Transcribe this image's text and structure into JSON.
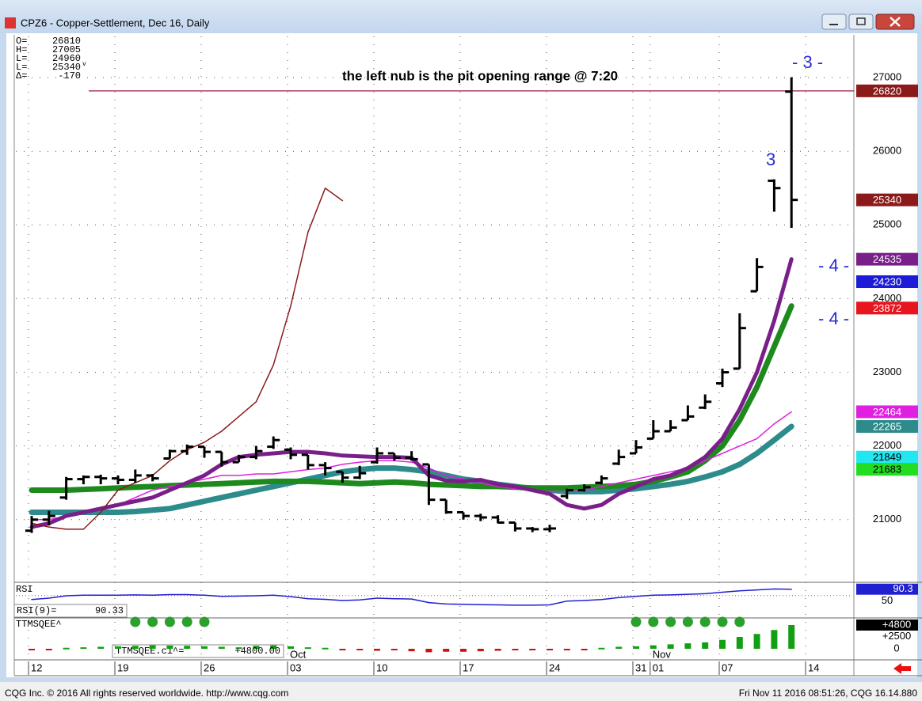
{
  "window": {
    "title": "CPZ6 - Copper-Settlement, Dec 16, Daily"
  },
  "footer": {
    "left": "CQG Inc. © 2016 All rights reserved worldwide. http://www.cqg.com",
    "right": "Fri Nov 11 2016 08:51:26, CQG 16.14.880"
  },
  "info": [
    {
      "label": "O=",
      "value": 26810
    },
    {
      "label": "H=",
      "value": 27005
    },
    {
      "label": "L=",
      "value": 24960
    },
    {
      "label": "L=",
      "value": 25340,
      "flag": "v"
    },
    {
      "label": "Δ=",
      "value": -170
    }
  ],
  "chart_data": {
    "type": "ohlc",
    "annotations": [
      "the left nub is the pit opening range @ 7:20",
      "- 3 -",
      "3",
      "- 4 -",
      "- 4 -"
    ],
    "categories": [
      "12",
      null,
      null,
      null,
      null,
      "19",
      null,
      null,
      null,
      null,
      "26",
      null,
      null,
      null,
      null,
      "03",
      null,
      null,
      null,
      null,
      "10",
      null,
      null,
      null,
      null,
      "17",
      null,
      null,
      null,
      null,
      "24",
      null,
      null,
      null,
      null,
      "31",
      "01",
      null,
      null,
      null,
      "07",
      null,
      null,
      null,
      null,
      "14",
      null,
      null
    ],
    "months": [
      null,
      null,
      null,
      null,
      null,
      null,
      null,
      null,
      null,
      null,
      null,
      null,
      null,
      null,
      null,
      "Oct",
      null,
      null,
      null,
      null,
      null,
      null,
      null,
      null,
      null,
      null,
      null,
      null,
      null,
      null,
      null,
      null,
      null,
      null,
      null,
      null,
      "Nov",
      null,
      null,
      null,
      null,
      null,
      null,
      null,
      null,
      null,
      null,
      null
    ],
    "open": [
      20850,
      21000,
      21300,
      21550,
      21580,
      21560,
      21540,
      21600,
      21830,
      21930,
      21990,
      21920,
      21780,
      21850,
      21990,
      21950,
      21880,
      21740,
      21650,
      21570,
      21780,
      21900,
      21840,
      21750,
      21270,
      21100,
      21050,
      21030,
      20960,
      20880,
      20870,
      21320,
      21400,
      21500,
      21760,
      21900,
      22100,
      22200,
      22350,
      22520,
      22850,
      23050,
      24100,
      25600,
      26810,
      null,
      null,
      null
    ],
    "high": [
      21050,
      21120,
      21580,
      21600,
      21610,
      21600,
      21680,
      21620,
      21950,
      22020,
      21990,
      21920,
      21880,
      22000,
      22130,
      21980,
      21880,
      21780,
      21650,
      21730,
      21980,
      21900,
      21930,
      21750,
      21270,
      21100,
      21080,
      21060,
      20960,
      20900,
      20930,
      21420,
      21480,
      21600,
      21950,
      22080,
      22350,
      22350,
      22550,
      22700,
      23050,
      23800,
      24550,
      25620,
      27005,
      null,
      null,
      null
    ],
    "low": [
      20820,
      20920,
      21270,
      21480,
      21480,
      21480,
      21500,
      21520,
      21830,
      21880,
      21840,
      21720,
      21780,
      21820,
      21960,
      21820,
      21680,
      21600,
      21500,
      21550,
      21760,
      21800,
      21800,
      21200,
      21080,
      21000,
      20980,
      20950,
      20840,
      20830,
      20830,
      21280,
      21380,
      21480,
      21740,
      21900,
      22100,
      22200,
      22350,
      22500,
      22800,
      23050,
      24100,
      25180,
      24960,
      null,
      null,
      null
    ],
    "close": [
      21000,
      21050,
      21550,
      21580,
      21560,
      21540,
      21600,
      21560,
      21930,
      21990,
      21920,
      21780,
      21850,
      21930,
      22080,
      21880,
      21740,
      21700,
      21570,
      21630,
      21900,
      21840,
      21820,
      21270,
      21100,
      21050,
      21030,
      20960,
      20880,
      20870,
      20880,
      21400,
      21440,
      21560,
      21850,
      21980,
      22200,
      22250,
      22400,
      22600,
      23000,
      23600,
      24430,
      25500,
      25340,
      null,
      null,
      null
    ],
    "bar_color": "#000000",
    "series": [
      {
        "color": "#2e8b8b",
        "width": 7,
        "values": [
          21100,
          21100,
          21100,
          21100,
          21100,
          21100,
          21110,
          21130,
          21150,
          21200,
          21250,
          21300,
          21350,
          21400,
          21450,
          21500,
          21550,
          21600,
          21650,
          21680,
          21700,
          21700,
          21680,
          21650,
          21600,
          21550,
          21520,
          21480,
          21450,
          21420,
          21400,
          21380,
          21380,
          21380,
          21400,
          21420,
          21450,
          21480,
          21520,
          21580,
          21650,
          21750,
          21900,
          22080,
          22265,
          null,
          null,
          null
        ]
      },
      {
        "color": "#1e8a1e",
        "width": 7,
        "values": [
          21400,
          21400,
          21400,
          21410,
          21420,
          21430,
          21440,
          21450,
          21460,
          21470,
          21480,
          21490,
          21500,
          21510,
          21520,
          21520,
          21520,
          21510,
          21500,
          21490,
          21500,
          21510,
          21500,
          21480,
          21470,
          21460,
          21450,
          21450,
          21440,
          21430,
          21430,
          21430,
          21440,
          21450,
          21460,
          21480,
          21520,
          21580,
          21650,
          21800,
          22000,
          22350,
          22800,
          23350,
          23900,
          null,
          null,
          null
        ]
      },
      {
        "color": "#e020e0",
        "width": 1.5,
        "values": [
          21000,
          21000,
          21050,
          21100,
          21150,
          21200,
          21300,
          21400,
          21450,
          21500,
          21550,
          21600,
          21600,
          21620,
          21620,
          21650,
          21680,
          21700,
          21750,
          21780,
          21800,
          21800,
          21780,
          21700,
          21600,
          21550,
          21500,
          21450,
          21420,
          21400,
          21380,
          21380,
          21400,
          21450,
          21500,
          21550,
          21600,
          21650,
          21700,
          21800,
          21900,
          22000,
          22100,
          22300,
          22464,
          null,
          null,
          null
        ]
      },
      {
        "color": "#7a1f8a",
        "width": 5,
        "values": [
          20900,
          20950,
          21050,
          21100,
          21150,
          21200,
          21250,
          21300,
          21400,
          21500,
          21600,
          21750,
          21850,
          21880,
          21900,
          21920,
          21920,
          21900,
          21870,
          21860,
          21850,
          21850,
          21840,
          21600,
          21530,
          21520,
          21540,
          21480,
          21450,
          21400,
          21350,
          21200,
          21150,
          21200,
          21350,
          21450,
          21550,
          21600,
          21700,
          21850,
          22100,
          22500,
          23000,
          23700,
          24535,
          null,
          null,
          null
        ]
      },
      {
        "color": "#8b1a1a",
        "width": 1.5,
        "values": [
          20950,
          20900,
          20870,
          20870,
          21100,
          21400,
          21500,
          21600,
          21800,
          21950,
          22050,
          22200,
          22400,
          22600,
          23100,
          23900,
          24900,
          25500,
          25330,
          null,
          null,
          null,
          null,
          null,
          null,
          null,
          null,
          null,
          null,
          null,
          null,
          null,
          null,
          null,
          null,
          null,
          null,
          null,
          null,
          null,
          null,
          null,
          null,
          null,
          null,
          null,
          null,
          null
        ]
      }
    ],
    "ylim": [
      20160,
      27570
    ],
    "yticks": [
      21000,
      22000,
      23000,
      24000,
      25000,
      26000,
      27000
    ],
    "grid": true,
    "level_line": {
      "value": 26820,
      "color": "#9b1b3b"
    },
    "price_markers": [
      {
        "value": 26820,
        "color": "#8b1a1a",
        "text_color": "#ffffff"
      },
      {
        "value": 25340,
        "color": "#8b1a1a",
        "text_color": "#ffffff"
      },
      {
        "value": 24535,
        "color": "#7a1f8a",
        "text_color": "#ffffff"
      },
      {
        "value": 24230,
        "color": "#1c1cd8",
        "text_color": "#ffffff"
      },
      {
        "value": 23872,
        "color": "#e8141e",
        "text_color": "#ffffff"
      },
      {
        "value": 22464,
        "color": "#e020e0",
        "text_color": "#ffffff"
      },
      {
        "value": 22265,
        "color": "#2e8b8b",
        "text_color": "#ffffff"
      },
      {
        "value": 21849,
        "color": "#22e6f0",
        "text_color": "#000000"
      },
      {
        "value": 21683,
        "color": "#22dd22",
        "text_color": "#000000"
      }
    ],
    "rsi": {
      "name": "RSI",
      "readout_label": "RSI(9)=",
      "color": "#2020d0",
      "values": [
        55,
        60,
        68,
        70,
        70,
        70,
        71,
        70,
        72,
        72,
        70,
        66,
        67,
        68,
        70,
        65,
        58,
        56,
        52,
        54,
        60,
        58,
        57,
        45,
        40,
        39,
        38,
        37,
        36,
        36,
        37,
        50,
        52,
        55,
        62,
        66,
        70,
        71,
        73,
        75,
        80,
        85,
        88,
        91,
        90.33,
        null,
        null,
        null
      ],
      "value_labels": [
        null,
        null,
        null,
        null,
        null,
        null,
        null,
        null,
        null,
        null,
        null,
        null,
        null,
        null,
        null,
        null,
        null,
        null,
        null,
        null,
        null,
        null,
        null,
        null,
        null,
        null,
        null,
        null,
        null,
        null,
        null,
        null,
        null,
        null,
        null,
        null,
        null,
        null,
        null,
        null,
        null,
        null,
        null,
        null,
        "90.3",
        null,
        null,
        null
      ],
      "ylim": [
        25,
        111
      ],
      "yticks": [
        50
      ]
    },
    "ttm": {
      "name": "TTMSQEE^",
      "readout_label": "TTMSQEE.c1^=",
      "pos_color": "#12a012",
      "neg_color": "#d01010",
      "dot_color": "#2ca02c",
      "values": [
        -300,
        -200,
        200,
        300,
        400,
        500,
        600,
        700,
        650,
        600,
        500,
        400,
        300,
        600,
        700,
        500,
        300,
        200,
        -200,
        -300,
        -400,
        -300,
        -500,
        -700,
        -600,
        -600,
        -500,
        -400,
        -300,
        -200,
        -200,
        -300,
        -100,
        200,
        400,
        500,
        700,
        900,
        1100,
        1300,
        1800,
        2400,
        3000,
        3800,
        4800,
        null,
        null,
        null
      ],
      "value_labels": [
        null,
        null,
        null,
        null,
        null,
        null,
        null,
        null,
        null,
        null,
        null,
        null,
        null,
        null,
        null,
        null,
        null,
        null,
        null,
        null,
        null,
        null,
        null,
        null,
        null,
        null,
        null,
        null,
        null,
        null,
        null,
        null,
        null,
        null,
        null,
        null,
        null,
        null,
        null,
        null,
        null,
        null,
        null,
        null,
        "+4800.00",
        null,
        null,
        null
      ],
      "dots": [
        false,
        false,
        false,
        false,
        false,
        false,
        true,
        true,
        true,
        true,
        true,
        false,
        false,
        false,
        false,
        false,
        false,
        false,
        false,
        false,
        false,
        false,
        false,
        false,
        false,
        false,
        false,
        false,
        false,
        false,
        false,
        false,
        false,
        false,
        false,
        true,
        true,
        true,
        true,
        true,
        true,
        true,
        false,
        false,
        false,
        false,
        false,
        false
      ],
      "ylim": [
        -1920,
        5920
      ],
      "yticks": [
        {
          "value": 4800,
          "label": "+4800"
        },
        {
          "value": 2500,
          "label": "+2500"
        },
        0
      ]
    }
  }
}
